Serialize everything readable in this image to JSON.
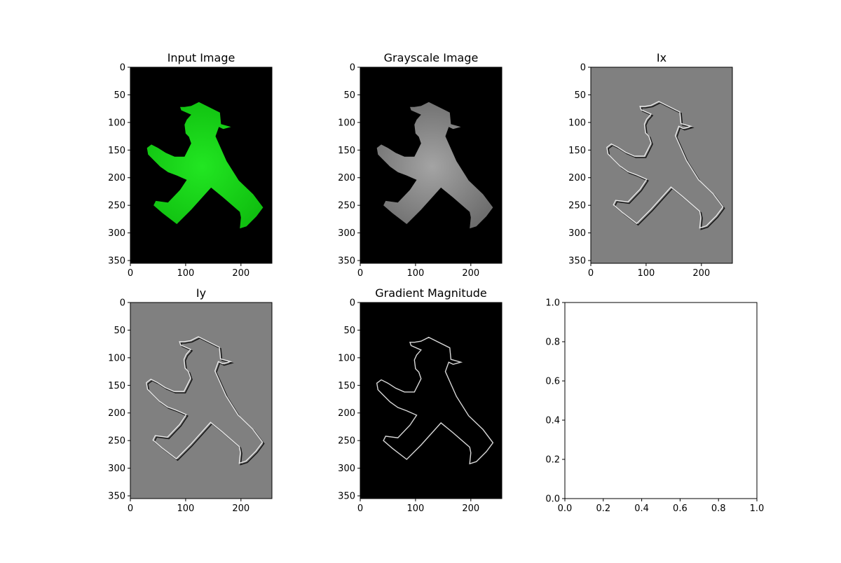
{
  "figure": {
    "background": "#ffffff"
  },
  "chart_data": [
    {
      "type": "image",
      "title": "Input Image",
      "x_ticks": [
        "0",
        "100",
        "200"
      ],
      "y_ticks": [
        "0",
        "50",
        "100",
        "150",
        "200",
        "250",
        "300",
        "350"
      ],
      "xlim": [
        0,
        256
      ],
      "ylim": [
        355,
        0
      ],
      "image_colors": {
        "background": "#000000",
        "figure": "#10c010",
        "figure_center": "#22e622",
        "edge": null
      },
      "description_text": ""
    },
    {
      "type": "image",
      "title": "Grayscale Image",
      "x_ticks": [
        "0",
        "100",
        "200"
      ],
      "y_ticks": [
        "0",
        "50",
        "100",
        "150",
        "200",
        "250",
        "300",
        "350"
      ],
      "xlim": [
        0,
        256
      ],
      "ylim": [
        355,
        0
      ],
      "image_colors": {
        "background": "#000000",
        "figure": "#6e6e6e",
        "figure_center": "#a4a4a4",
        "edge": null
      },
      "description_text": ""
    },
    {
      "type": "image",
      "title": "Ix",
      "x_ticks": [
        "0",
        "100",
        "200"
      ],
      "y_ticks": [
        "0",
        "50",
        "100",
        "150",
        "200",
        "250",
        "300",
        "350"
      ],
      "xlim": [
        0,
        256
      ],
      "ylim": [
        355,
        0
      ],
      "image_colors": {
        "background": "#808080",
        "figure": "#808080",
        "figure_center": "#828282",
        "edge": "#e8e8e8",
        "edge_dark": "#1a1a1a"
      },
      "description_text": ""
    },
    {
      "type": "image",
      "title": "Iy",
      "x_ticks": [
        "0",
        "100",
        "200"
      ],
      "y_ticks": [
        "0",
        "50",
        "100",
        "150",
        "200",
        "250",
        "300",
        "350"
      ],
      "xlim": [
        0,
        256
      ],
      "ylim": [
        355,
        0
      ],
      "image_colors": {
        "background": "#808080",
        "figure": "#808080",
        "figure_center": "#828282",
        "edge": "#e8e8e8",
        "edge_dark": "#1a1a1a"
      },
      "description_text": ""
    },
    {
      "type": "image",
      "title": "Gradient Magnitude",
      "x_ticks": [
        "0",
        "100",
        "200"
      ],
      "y_ticks": [
        "0",
        "50",
        "100",
        "150",
        "200",
        "250",
        "300",
        "350"
      ],
      "xlim": [
        0,
        256
      ],
      "ylim": [
        355,
        0
      ],
      "image_colors": {
        "background": "#000000",
        "figure": "#000000",
        "figure_center": "#000000",
        "edge": "#d8d8d8"
      },
      "description_text": ""
    },
    {
      "type": "empty",
      "title": "",
      "x_ticks": [
        "0.0",
        "0.2",
        "0.4",
        "0.6",
        "0.8",
        "1.0"
      ],
      "y_ticks": [
        "0.0",
        "0.2",
        "0.4",
        "0.6",
        "0.8",
        "1.0"
      ],
      "xlim": [
        0,
        1
      ],
      "ylim": [
        0,
        1
      ]
    }
  ],
  "figure_outline_points": [
    [
      124,
      63
    ],
    [
      162,
      82
    ],
    [
      164,
      103
    ],
    [
      182,
      108
    ],
    [
      168,
      112
    ],
    [
      160,
      108
    ],
    [
      154,
      125
    ],
    [
      174,
      170
    ],
    [
      196,
      205
    ],
    [
      222,
      230
    ],
    [
      240,
      254
    ],
    [
      228,
      270
    ],
    [
      210,
      288
    ],
    [
      198,
      292
    ],
    [
      200,
      272
    ],
    [
      198,
      262
    ],
    [
      168,
      236
    ],
    [
      146,
      218
    ],
    [
      110,
      258
    ],
    [
      84,
      284
    ],
    [
      58,
      264
    ],
    [
      42,
      250
    ],
    [
      46,
      242
    ],
    [
      68,
      245
    ],
    [
      90,
      222
    ],
    [
      102,
      204
    ],
    [
      84,
      196
    ],
    [
      68,
      190
    ],
    [
      54,
      180
    ],
    [
      42,
      168
    ],
    [
      32,
      158
    ],
    [
      30,
      146
    ],
    [
      38,
      140
    ],
    [
      50,
      146
    ],
    [
      64,
      155
    ],
    [
      80,
      162
    ],
    [
      98,
      162
    ],
    [
      104,
      150
    ],
    [
      110,
      138
    ],
    [
      106,
      126
    ],
    [
      100,
      120
    ],
    [
      98,
      104
    ],
    [
      102,
      95
    ],
    [
      110,
      86
    ],
    [
      92,
      78
    ],
    [
      90,
      72
    ],
    [
      98,
      72
    ],
    [
      110,
      70
    ]
  ]
}
